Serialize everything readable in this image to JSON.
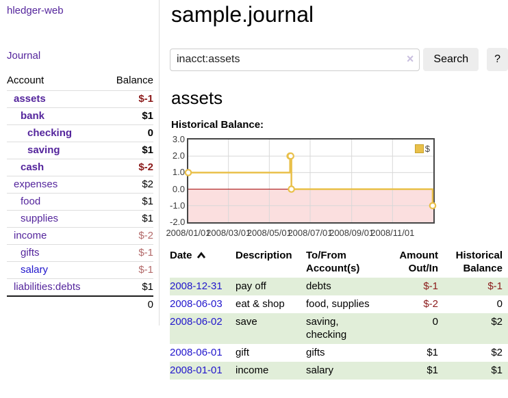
{
  "palette": {
    "link_purple": "#54259c",
    "link_blue": "#2015cc",
    "negative": "#8b1a1a",
    "negative_soft": "#b36a6a",
    "row_green": "#e1eed9",
    "chart_gold": "#e9c04a",
    "chart_pink": "#fbdfdf",
    "chart_zero_line": "#a00000",
    "chart_border": "#454545",
    "grid_line": "#d8d8d8",
    "button_bg": "#ededed",
    "divider": "#dddddd"
  },
  "sidebar": {
    "brand": "hledger-web",
    "journal_link": "Journal",
    "header": {
      "account": "Account",
      "balance": "Balance"
    },
    "accounts": [
      {
        "name": "assets",
        "depth": 1,
        "bold": true,
        "name_color": "purple",
        "balance": "$-1",
        "balance_color": "neg"
      },
      {
        "name": "bank",
        "depth": 2,
        "bold": true,
        "name_color": "purple",
        "balance": "$1",
        "balance_color": "pos"
      },
      {
        "name": "checking",
        "depth": 3,
        "bold": true,
        "name_color": "purple",
        "balance": "0",
        "balance_color": "pos"
      },
      {
        "name": "saving",
        "depth": 3,
        "bold": true,
        "name_color": "purple",
        "balance": "$1",
        "balance_color": "pos"
      },
      {
        "name": "cash",
        "depth": 2,
        "bold": true,
        "name_color": "purple",
        "balance": "$-2",
        "balance_color": "neg"
      },
      {
        "name": "expenses",
        "depth": 1,
        "bold": false,
        "name_color": "purple",
        "balance": "$2",
        "balance_color": "pos"
      },
      {
        "name": "food",
        "depth": 2,
        "bold": false,
        "name_color": "purple",
        "balance": "$1",
        "balance_color": "pos"
      },
      {
        "name": "supplies",
        "depth": 2,
        "bold": false,
        "name_color": "purple",
        "balance": "$1",
        "balance_color": "pos"
      },
      {
        "name": "income",
        "depth": 1,
        "bold": false,
        "name_color": "purple",
        "balance": "$-2",
        "balance_color": "neg-soft"
      },
      {
        "name": "gifts",
        "depth": 2,
        "bold": false,
        "name_color": "purple",
        "balance": "$-1",
        "balance_color": "neg-soft"
      },
      {
        "name": "salary",
        "depth": 2,
        "bold": false,
        "name_color": "blue",
        "balance": "$-1",
        "balance_color": "neg-soft"
      },
      {
        "name": "liabilities:debts",
        "depth": 1,
        "bold": false,
        "name_color": "purple",
        "balance": "$1",
        "balance_color": "pos"
      }
    ],
    "total": "0"
  },
  "main": {
    "title": "sample.journal",
    "search": {
      "value": "inacct:assets",
      "clear_icon": "×",
      "button_label": "Search",
      "help_label": "?"
    },
    "account_title": "assets",
    "chart_label": "Historical Balance:"
  },
  "chart_data": {
    "type": "line",
    "title": "Historical Balance",
    "step": true,
    "series": [
      {
        "name": "$",
        "color": "#e9c04a",
        "points": [
          [
            "2008-01-01",
            1
          ],
          [
            "2008-06-01",
            2
          ],
          [
            "2008-06-02",
            2
          ],
          [
            "2008-06-03",
            0
          ],
          [
            "2008-12-31",
            -1
          ]
        ]
      }
    ],
    "xlim": [
      "2008-01-01",
      "2008-12-31"
    ],
    "ylim": [
      -2,
      3
    ],
    "yticks": [
      3,
      2,
      1,
      0,
      -1,
      -2
    ],
    "ytick_labels": [
      "3.0",
      "2.0",
      "1.0",
      "0.0",
      "-1.0",
      "-2.0"
    ],
    "xticks": [
      "2008/01/01",
      "2008/03/01",
      "2008/05/01",
      "2008/07/01",
      "2008/09/01",
      "2008/11/01"
    ],
    "legend": {
      "label": "$",
      "position": "top-right"
    },
    "grid": true,
    "negative_region_shaded": true
  },
  "register": {
    "columns": [
      {
        "label": "Date",
        "sort": "ascending"
      },
      {
        "label": "Description"
      },
      {
        "label": "To/From Account(s)"
      },
      {
        "label": "Amount Out/In"
      },
      {
        "label": "Historical Balance"
      }
    ],
    "rows": [
      {
        "date": "2008-12-31",
        "description": "pay off",
        "accounts": "debts",
        "amount": "$-1",
        "amount_color": "neg",
        "balance": "$-1",
        "balance_color": "neg"
      },
      {
        "date": "2008-06-03",
        "description": "eat & shop",
        "accounts": "food, supplies",
        "amount": "$-2",
        "amount_color": "neg",
        "balance": "0",
        "balance_color": "pos"
      },
      {
        "date": "2008-06-02",
        "description": "save",
        "accounts": "saving, checking",
        "amount": "0",
        "amount_color": "pos",
        "balance": "$2",
        "balance_color": "pos"
      },
      {
        "date": "2008-06-01",
        "description": "gift",
        "accounts": "gifts",
        "amount": "$1",
        "amount_color": "pos",
        "balance": "$2",
        "balance_color": "pos"
      },
      {
        "date": "2008-01-01",
        "description": "income",
        "accounts": "salary",
        "amount": "$1",
        "amount_color": "pos",
        "balance": "$1",
        "balance_color": "pos"
      }
    ]
  }
}
